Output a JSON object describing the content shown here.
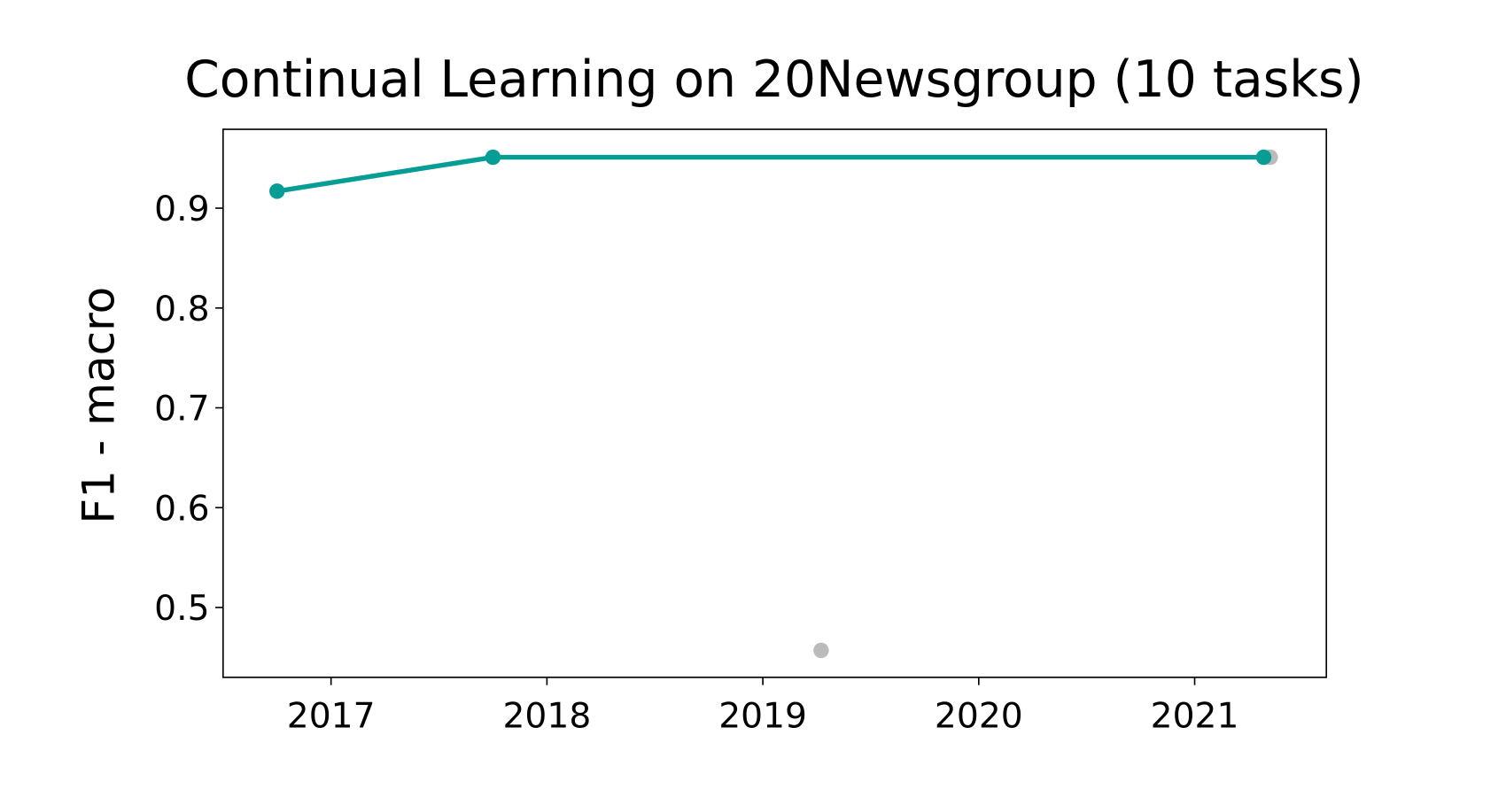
{
  "chart_data": {
    "type": "line",
    "title": "Continual Learning on 20Newsgroup (10 tasks)",
    "y_label": "F1 - macro",
    "xlim": [
      2016.5,
      2021.61
    ],
    "xticks": [
      2017,
      2018,
      2019,
      2020,
      2021
    ],
    "ylim": [
      0.43,
      0.979
    ],
    "yticks": [
      0.5,
      0.6,
      0.7,
      0.8,
      0.9
    ],
    "grid": false,
    "series": [
      {
        "color": "#bbbbbb",
        "line": false,
        "x": [
          2019.27,
          2021.35
        ],
        "values": [
          0.457,
          0.951
        ]
      },
      {
        "color": "#069e94",
        "line": true,
        "x": [
          2016.75,
          2017.75,
          2021.32
        ],
        "values": [
          0.917,
          0.951,
          0.951
        ]
      }
    ]
  }
}
